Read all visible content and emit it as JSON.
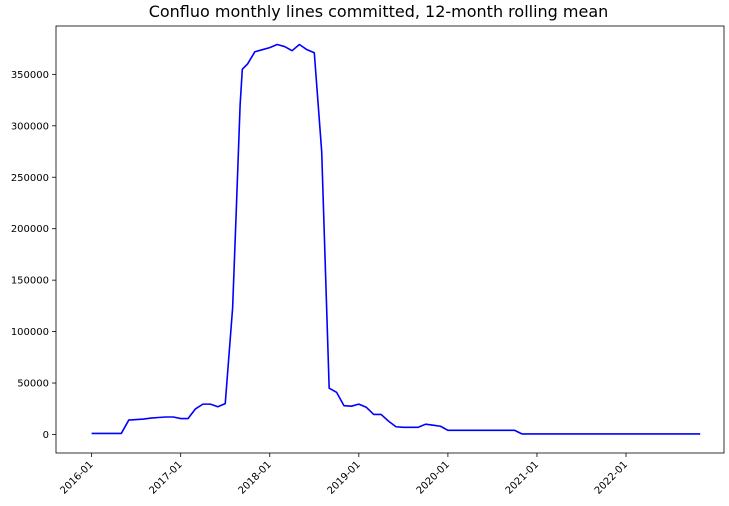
{
  "chart_data": {
    "type": "line",
    "title": "Confluo monthly lines committed, 12-month rolling mean",
    "xlabel": "",
    "ylabel": "",
    "x_tick_labels": [
      "2016-01",
      "2017-01",
      "2018-01",
      "2019-01",
      "2020-01",
      "2021-01",
      "2022-01"
    ],
    "y_tick_labels": [
      "0",
      "50000",
      "100000",
      "150000",
      "200000",
      "250000",
      "300000",
      "350000"
    ],
    "y_ticks": [
      0,
      50000,
      100000,
      150000,
      200000,
      250000,
      300000,
      350000
    ],
    "xlim": [
      2015.6,
      2023.1
    ],
    "ylim": [
      -18000,
      397000
    ],
    "grid": false,
    "series": [
      {
        "name": "12-month rolling mean",
        "color": "#0000ff",
        "points": [
          [
            2016.0,
            1000
          ],
          [
            2016.083,
            1000
          ],
          [
            2016.167,
            1000
          ],
          [
            2016.25,
            1000
          ],
          [
            2016.333,
            1000
          ],
          [
            2016.417,
            14000
          ],
          [
            2016.5,
            14500
          ],
          [
            2016.583,
            15000
          ],
          [
            2016.667,
            16000
          ],
          [
            2016.75,
            16500
          ],
          [
            2016.833,
            17000
          ],
          [
            2016.917,
            17000
          ],
          [
            2017.0,
            15500
          ],
          [
            2017.083,
            15500
          ],
          [
            2017.167,
            25000
          ],
          [
            2017.25,
            29500
          ],
          [
            2017.333,
            29500
          ],
          [
            2017.417,
            27000
          ],
          [
            2017.5,
            30000
          ],
          [
            2017.583,
            123000
          ],
          [
            2017.625,
            220000
          ],
          [
            2017.667,
            320000
          ],
          [
            2017.692,
            355000
          ],
          [
            2017.75,
            360000
          ],
          [
            2017.833,
            372000
          ],
          [
            2017.917,
            374000
          ],
          [
            2018.0,
            376000
          ],
          [
            2018.083,
            379000
          ],
          [
            2018.167,
            377000
          ],
          [
            2018.25,
            373000
          ],
          [
            2018.333,
            379000
          ],
          [
            2018.417,
            374000
          ],
          [
            2018.5,
            371000
          ],
          [
            2018.583,
            275000
          ],
          [
            2018.625,
            160000
          ],
          [
            2018.667,
            45000
          ],
          [
            2018.75,
            41000
          ],
          [
            2018.833,
            28000
          ],
          [
            2018.917,
            27500
          ],
          [
            2019.0,
            29500
          ],
          [
            2019.083,
            26500
          ],
          [
            2019.167,
            19500
          ],
          [
            2019.25,
            19500
          ],
          [
            2019.333,
            13000
          ],
          [
            2019.417,
            7500
          ],
          [
            2019.5,
            7000
          ],
          [
            2019.583,
            7000
          ],
          [
            2019.667,
            7000
          ],
          [
            2019.75,
            10000
          ],
          [
            2019.833,
            9000
          ],
          [
            2019.917,
            8000
          ],
          [
            2020.0,
            4000
          ],
          [
            2020.25,
            4000
          ],
          [
            2020.5,
            4000
          ],
          [
            2020.667,
            4000
          ],
          [
            2020.75,
            4000
          ],
          [
            2020.833,
            500
          ],
          [
            2021.0,
            500
          ],
          [
            2021.5,
            500
          ],
          [
            2022.0,
            500
          ],
          [
            2022.5,
            500
          ],
          [
            2022.833,
            500
          ]
        ]
      }
    ]
  }
}
